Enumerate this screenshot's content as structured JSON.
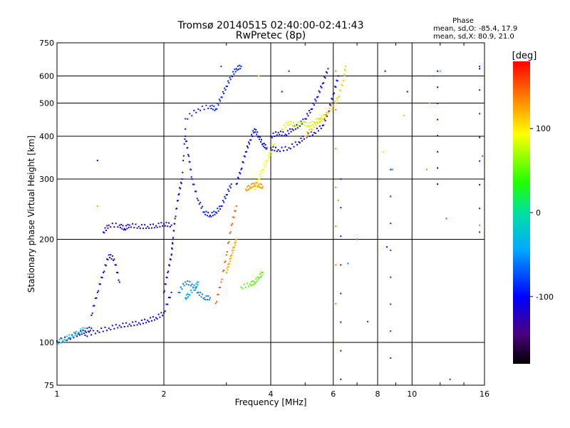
{
  "chart_data": {
    "type": "scatter",
    "title": "Tromsø 20140515 02:40:00-02:41:43",
    "subtitle": "RwPretec (8p)",
    "xlabel": "Frequency [MHz]",
    "ylabel": "Stationary phase Virtual Height [km]",
    "x_scale": "log",
    "y_scale": "log",
    "xlim": [
      1,
      16
    ],
    "ylim": [
      75,
      750
    ],
    "grid": true,
    "x_ticks": [
      {
        "label": "1",
        "value": 1
      },
      {
        "label": "2",
        "value": 2
      },
      {
        "label": "4",
        "value": 4
      },
      {
        "label": "6",
        "value": 6
      },
      {
        "label": "8",
        "value": 8
      },
      {
        "label": "10",
        "value": 10
      },
      {
        "label": "16",
        "value": 16
      }
    ],
    "y_ticks": [
      {
        "label": "75",
        "value": 75
      },
      {
        "label": "100",
        "value": 100
      },
      {
        "label": "200",
        "value": 200
      },
      {
        "label": "300",
        "value": 300
      },
      {
        "label": "400",
        "value": 400
      },
      {
        "label": "500",
        "value": 500
      },
      {
        "label": "600",
        "value": 600
      },
      {
        "label": "750",
        "value": 750
      }
    ],
    "stats": {
      "heading": "Phase",
      "line1": "mean, sd,O: -85.4, 17.9",
      "line2": "mean, sd,X:  80.9, 21.0"
    },
    "colorbar": {
      "label": "[deg]",
      "range": [
        -180,
        180
      ],
      "ticks": [
        {
          "label": "100",
          "value": 100
        },
        {
          "label": "0",
          "value": 0
        },
        {
          "label": "-100",
          "value": -100
        }
      ]
    },
    "traces": [
      {
        "phase": -110,
        "x": [
          1.0,
          1.08,
          1.15,
          1.2,
          1.25
        ],
        "y": [
          101,
          103,
          106,
          108,
          110
        ]
      },
      {
        "phase": -20,
        "x": [
          1.0,
          1.05,
          1.1,
          1.15,
          1.2
        ],
        "y": [
          100,
          102,
          105,
          107,
          110
        ]
      },
      {
        "phase": -105,
        "x": [
          1.2,
          1.3,
          1.4,
          1.5,
          1.6,
          1.7,
          1.8,
          1.9,
          2.0,
          2.1
        ],
        "y": [
          105,
          108,
          110,
          112,
          113,
          114,
          116,
          118,
          122,
          140
        ]
      },
      {
        "phase": -110,
        "x": [
          1.25,
          1.3,
          1.35,
          1.4,
          1.45,
          1.5
        ],
        "y": [
          120,
          140,
          160,
          180,
          175,
          150
        ]
      },
      {
        "phase": -115,
        "x": [
          1.35,
          1.4,
          1.5,
          1.55,
          1.6,
          1.7,
          1.8,
          1.9,
          2.0,
          2.1
        ],
        "y": [
          210,
          220,
          220,
          215,
          220,
          218,
          218,
          219,
          222,
          220
        ]
      },
      {
        "phase": -112,
        "x": [
          2.0,
          2.05,
          2.1,
          2.12,
          2.15,
          2.2,
          2.25,
          2.3
        ],
        "y": [
          140,
          160,
          180,
          200,
          230,
          270,
          300,
          420
        ]
      },
      {
        "phase": -95,
        "x": [
          2.3,
          2.35,
          2.4,
          2.5,
          2.6,
          2.7,
          2.8,
          2.9,
          3.0,
          3.1
        ],
        "y": [
          400,
          350,
          300,
          260,
          240,
          235,
          240,
          250,
          270,
          290
        ]
      },
      {
        "phase": -60,
        "x": [
          2.2,
          2.3,
          2.4,
          2.5,
          2.6,
          2.7
        ],
        "y": [
          140,
          150,
          148,
          140,
          135,
          135
        ]
      },
      {
        "phase": -40,
        "x": [
          2.3,
          2.35,
          2.45,
          2.5
        ],
        "y": [
          135,
          138,
          145,
          150
        ]
      },
      {
        "phase": -90,
        "x": [
          2.3,
          2.5,
          2.7,
          2.8,
          2.9,
          3.0,
          3.1,
          3.2,
          3.3
        ],
        "y": [
          450,
          480,
          490,
          480,
          520,
          560,
          600,
          630,
          640
        ]
      },
      {
        "phase": 150,
        "x": [
          2.8,
          2.9,
          3.0,
          3.1,
          3.2
        ],
        "y": [
          130,
          150,
          180,
          220,
          250
        ]
      },
      {
        "phase": 120,
        "x": [
          3.0,
          3.05,
          3.1,
          3.15,
          3.2
        ],
        "y": [
          160,
          170,
          180,
          190,
          200
        ]
      },
      {
        "phase": -100,
        "x": [
          3.2,
          3.3,
          3.4,
          3.5,
          3.6,
          3.7,
          3.8,
          3.9
        ],
        "y": [
          290,
          320,
          360,
          390,
          420,
          400,
          380,
          370
        ]
      },
      {
        "phase": 130,
        "x": [
          3.4,
          3.5,
          3.6,
          3.7,
          3.8
        ],
        "y": [
          280,
          285,
          290,
          288,
          285
        ]
      },
      {
        "phase": 90,
        "x": [
          3.6,
          3.7,
          3.8,
          3.9,
          4.0,
          4.1
        ],
        "y": [
          280,
          300,
          320,
          340,
          360,
          380
        ]
      },
      {
        "phase": 50,
        "x": [
          3.3,
          3.5,
          3.6,
          3.7,
          3.8
        ],
        "y": [
          145,
          148,
          150,
          155,
          160
        ]
      },
      {
        "phase": -105,
        "x": [
          4.0,
          4.2,
          4.4,
          4.6,
          4.8,
          5.0,
          5.2,
          5.4,
          5.6,
          5.8
        ],
        "y": [
          400,
          410,
          405,
          420,
          430,
          450,
          480,
          520,
          570,
          630
        ]
      },
      {
        "phase": -108,
        "x": [
          4.0,
          4.2,
          4.5,
          4.8,
          5.0,
          5.3,
          5.6,
          5.8,
          6.0,
          6.2
        ],
        "y": [
          370,
          365,
          370,
          385,
          400,
          410,
          430,
          470,
          530,
          600
        ]
      },
      {
        "phase": 80,
        "x": [
          4.3,
          4.5,
          4.7,
          4.9,
          5.1,
          5.3,
          5.5,
          5.7
        ],
        "y": [
          420,
          440,
          430,
          440,
          430,
          440,
          450,
          460
        ]
      },
      {
        "phase": 110,
        "x": [
          5.0,
          5.2,
          5.4,
          5.6,
          5.8,
          6.0,
          6.2,
          6.4,
          6.5
        ],
        "y": [
          400,
          420,
          440,
          450,
          470,
          490,
          520,
          580,
          640
        ]
      }
    ],
    "scatter_points": [
      {
        "phase": -100,
        "x": 1.3,
        "y": 340
      },
      {
        "phase": 130,
        "x": 1.3,
        "y": 250
      },
      {
        "phase": -80,
        "x": 2.9,
        "y": 640
      },
      {
        "phase": 100,
        "x": 3.7,
        "y": 600
      },
      {
        "phase": -100,
        "x": 4.3,
        "y": 540
      },
      {
        "phase": -90,
        "x": 4.5,
        "y": 620
      },
      {
        "phase": 130,
        "x": 6.2,
        "y": 260
      },
      {
        "phase": -60,
        "x": 6.6,
        "y": 170
      },
      {
        "phase": 160,
        "x": 7.0,
        "y": 200
      },
      {
        "phase": -80,
        "x": 7.5,
        "y": 115
      },
      {
        "phase": 100,
        "x": 8.3,
        "y": 360
      },
      {
        "phase": -100,
        "x": 8.4,
        "y": 620
      },
      {
        "phase": -100,
        "x": 8.5,
        "y": 190
      },
      {
        "phase": -60,
        "x": 8.8,
        "y": 320
      },
      {
        "phase": 60,
        "x": 9.5,
        "y": 460
      },
      {
        "phase": -100,
        "x": 9.7,
        "y": 540
      },
      {
        "phase": 140,
        "x": 11.0,
        "y": 320
      },
      {
        "phase": 40,
        "x": 11.2,
        "y": 500
      },
      {
        "phase": -70,
        "x": 11.5,
        "y": 600
      },
      {
        "phase": -20,
        "x": 12.0,
        "y": 620
      },
      {
        "phase": 160,
        "x": 12.5,
        "y": 230
      },
      {
        "phase": -80,
        "x": 12.8,
        "y": 78
      },
      {
        "phase": -100,
        "x": 15.5,
        "y": 630
      },
      {
        "phase": -60,
        "x": 15.8,
        "y": 350
      },
      {
        "phase": 140,
        "x": 15.5,
        "y": 220
      }
    ],
    "vertical_streaks": [
      {
        "phase": 140,
        "x": 6.1,
        "y_from": 100,
        "y_to": 620
      },
      {
        "phase": -90,
        "x": 6.3,
        "y_from": 78,
        "y_to": 300
      },
      {
        "phase": -80,
        "x": 8.7,
        "y_from": 90,
        "y_to": 320
      },
      {
        "phase": -100,
        "x": 11.8,
        "y_from": 290,
        "y_to": 620
      },
      {
        "phase": -90,
        "x": 15.5,
        "y_from": 210,
        "y_to": 640
      }
    ]
  }
}
